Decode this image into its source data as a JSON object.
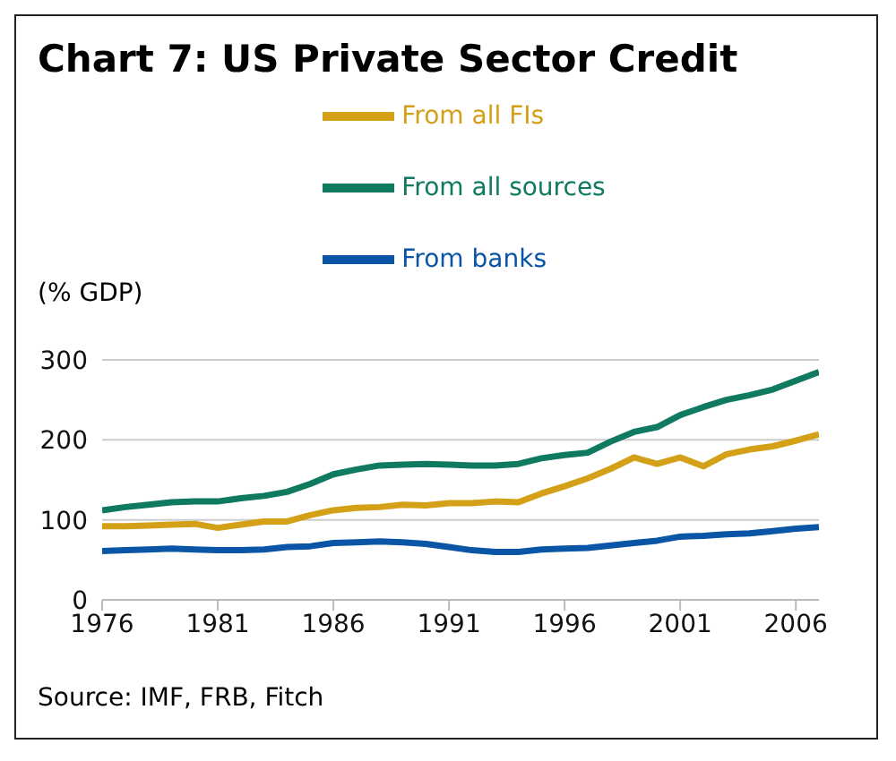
{
  "chart_data": {
    "type": "line",
    "title": "Chart 7: US Private Sector Credit",
    "ylabel": "(% GDP)",
    "x": [
      1976,
      1977,
      1978,
      1979,
      1980,
      1981,
      1982,
      1983,
      1984,
      1985,
      1986,
      1987,
      1988,
      1989,
      1990,
      1991,
      1992,
      1993,
      1994,
      1995,
      1996,
      1997,
      1998,
      1999,
      2000,
      2001,
      2002,
      2003,
      2004,
      2005,
      2006,
      2007
    ],
    "series": [
      {
        "name": "From banks",
        "color": "#0a55a5",
        "values": [
          61,
          62,
          63,
          64,
          63,
          62,
          62,
          63,
          66,
          67,
          71,
          72,
          73,
          72,
          70,
          66,
          62,
          60,
          60,
          63,
          64,
          65,
          68,
          71,
          74,
          79,
          80,
          82,
          83,
          86,
          89,
          91
        ]
      },
      {
        "name": "From all FIs",
        "color": "#d4a017",
        "values": [
          92,
          92,
          93,
          94,
          95,
          90,
          94,
          98,
          98,
          106,
          112,
          115,
          116,
          119,
          118,
          121,
          121,
          123,
          122,
          133,
          142,
          152,
          164,
          178,
          170,
          178,
          167,
          182,
          188,
          192,
          199,
          207
        ]
      },
      {
        "name": "From all sources",
        "color": "#0f7a5f",
        "values": [
          112,
          116,
          119,
          122,
          123,
          123,
          127,
          130,
          135,
          145,
          157,
          163,
          168,
          169,
          170,
          169,
          168,
          168,
          170,
          177,
          181,
          184,
          198,
          210,
          216,
          231,
          241,
          250,
          256,
          263,
          274,
          285
        ]
      }
    ],
    "xlim": [
      1976,
      2007
    ],
    "xticks": [
      1976,
      1981,
      1986,
      1991,
      1996,
      2001,
      2006
    ],
    "ylim": [
      0,
      300
    ],
    "yticks": [
      0,
      100,
      200,
      300
    ],
    "grid": "y",
    "legend": "top",
    "annotations": [
      "Source: IMF, FRB, Fitch"
    ]
  }
}
